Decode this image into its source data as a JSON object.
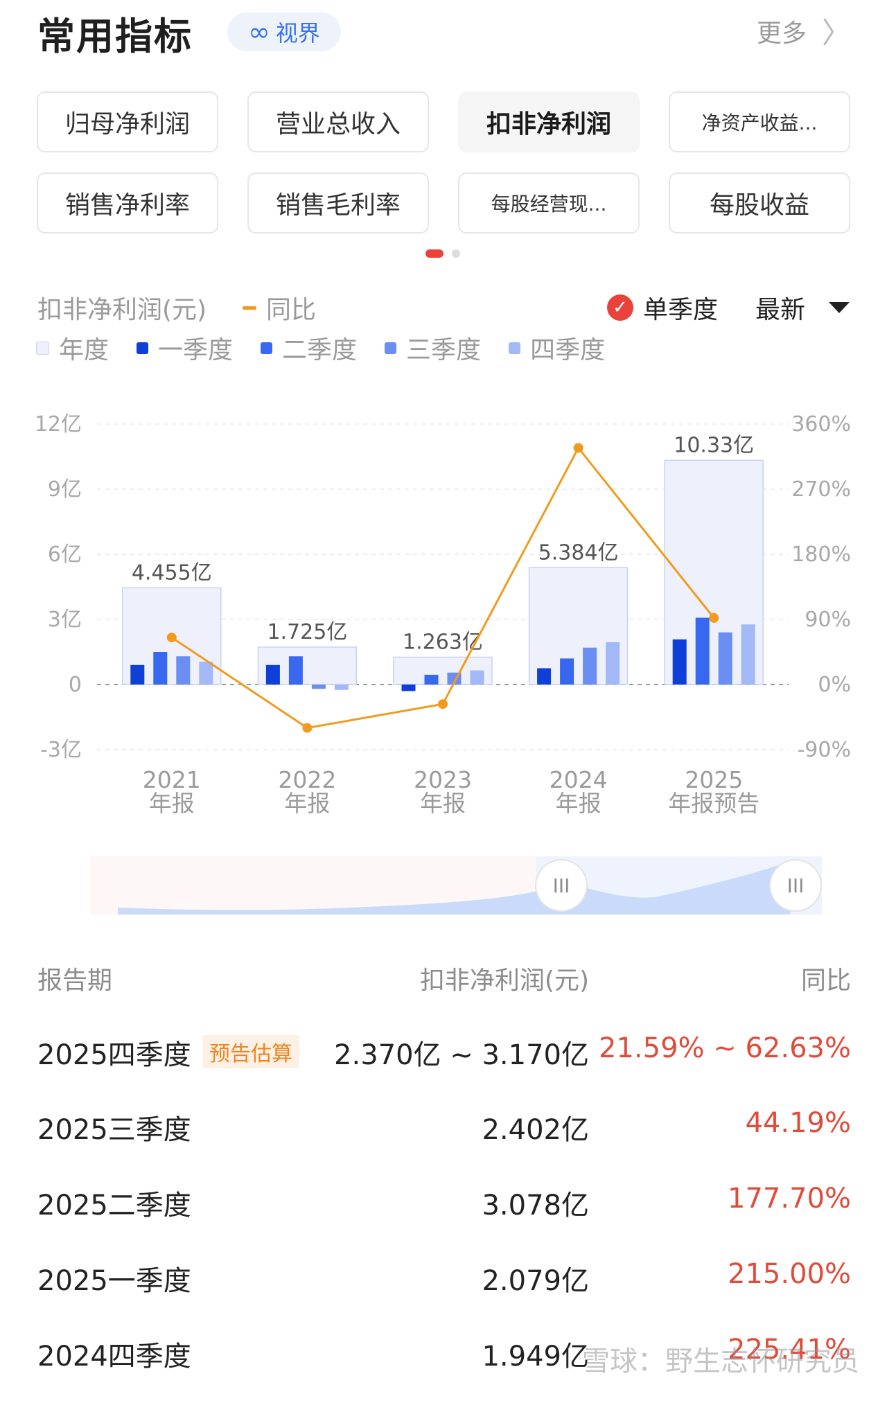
{
  "header": {
    "title": "常用指标",
    "badge_icon": "∞",
    "badge_label": "视界",
    "more_label": "更多",
    "more_chevron": "〉"
  },
  "metrics": [
    {
      "label": "归母净利润"
    },
    {
      "label": "营业总收入"
    },
    {
      "label": "扣非净利润",
      "active": true
    },
    {
      "label": "净资产收益..."
    },
    {
      "label": "销售净利率"
    },
    {
      "label": "销售毛利率"
    },
    {
      "label": "每股经营现..."
    },
    {
      "label": "每股收益"
    }
  ],
  "chart_header": {
    "metric_label": "扣非净利润(元)",
    "yoy_label": "同比",
    "single_quarter_label": "单季度",
    "single_quarter_checked": true,
    "sort_label": "最新"
  },
  "legend": [
    {
      "label": "年度",
      "color": "#eef0fb"
    },
    {
      "label": "一季度",
      "color": "#0e3fd6"
    },
    {
      "label": "二季度",
      "color": "#3868f0"
    },
    {
      "label": "三季度",
      "color": "#6a8ef2"
    },
    {
      "label": "四季度",
      "color": "#a3b9f7"
    }
  ],
  "chart_data": {
    "type": "bar",
    "categories": [
      "2021\n年报",
      "2022\n年报",
      "2023\n年报",
      "2024\n年报",
      "2025\n年报预告"
    ],
    "category_lines": [
      [
        "2021",
        "年报"
      ],
      [
        "2022",
        "年报"
      ],
      [
        "2023",
        "年报"
      ],
      [
        "2024",
        "年报"
      ],
      [
        "2025",
        "年报预告"
      ]
    ],
    "annual": [
      4.455,
      1.725,
      1.263,
      5.384,
      10.33
    ],
    "annual_labels": [
      "4.455亿",
      "1.725亿",
      "1.263亿",
      "5.384亿",
      "10.33亿"
    ],
    "series": [
      {
        "name": "一季度",
        "values": [
          0.9,
          0.9,
          -0.3,
          0.75,
          2.079
        ]
      },
      {
        "name": "二季度",
        "values": [
          1.5,
          1.3,
          0.45,
          1.2,
          3.078
        ]
      },
      {
        "name": "三季度",
        "values": [
          1.3,
          -0.2,
          0.55,
          1.7,
          2.402
        ]
      },
      {
        "name": "四季度",
        "values": [
          1.05,
          -0.25,
          0.65,
          1.95,
          2.77
        ]
      }
    ],
    "yoy": [
      65,
      -60,
      -27,
      327,
      92
    ],
    "yoy_series_name": "同比",
    "ylim": [
      -3,
      12
    ],
    "yticks": [
      -3,
      0,
      3,
      6,
      9,
      12
    ],
    "ytick_labels": [
      "-3亿",
      "0",
      "3亿",
      "6亿",
      "9亿",
      "12亿"
    ],
    "y2lim": [
      -90,
      360
    ],
    "y2ticks": [
      -90,
      0,
      90,
      180,
      270,
      360
    ],
    "y2tick_labels": [
      "-90%",
      "0%",
      "90%",
      "180%",
      "270%",
      "360%"
    ],
    "grid": true
  },
  "scroller": {
    "handle_glyph": "III",
    "range_start": 0.6,
    "range_end": 1.0
  },
  "table": {
    "headers": {
      "period": "报告期",
      "value": "扣非净利润(元)",
      "yoy": "同比"
    },
    "rows": [
      {
        "period": "2025四季度",
        "tag": "预告估算",
        "value": "2.370亿 ~ 3.170亿",
        "yoy": "21.59% ~ 62.63%"
      },
      {
        "period": "2025三季度",
        "value": "2.402亿",
        "yoy": "44.19%"
      },
      {
        "period": "2025二季度",
        "value": "3.078亿",
        "yoy": "177.70%"
      },
      {
        "period": "2025一季度",
        "value": "2.079亿",
        "yoy": "215.00%"
      },
      {
        "period": "2024四季度",
        "value": "1.949亿",
        "yoy": "225.41%"
      }
    ]
  },
  "watermark": "雪球：野生志怀研究员",
  "colors": {
    "accent_red": "#e8423b",
    "yoy_line": "#f29a1d",
    "down_red": "#e14b3a"
  }
}
